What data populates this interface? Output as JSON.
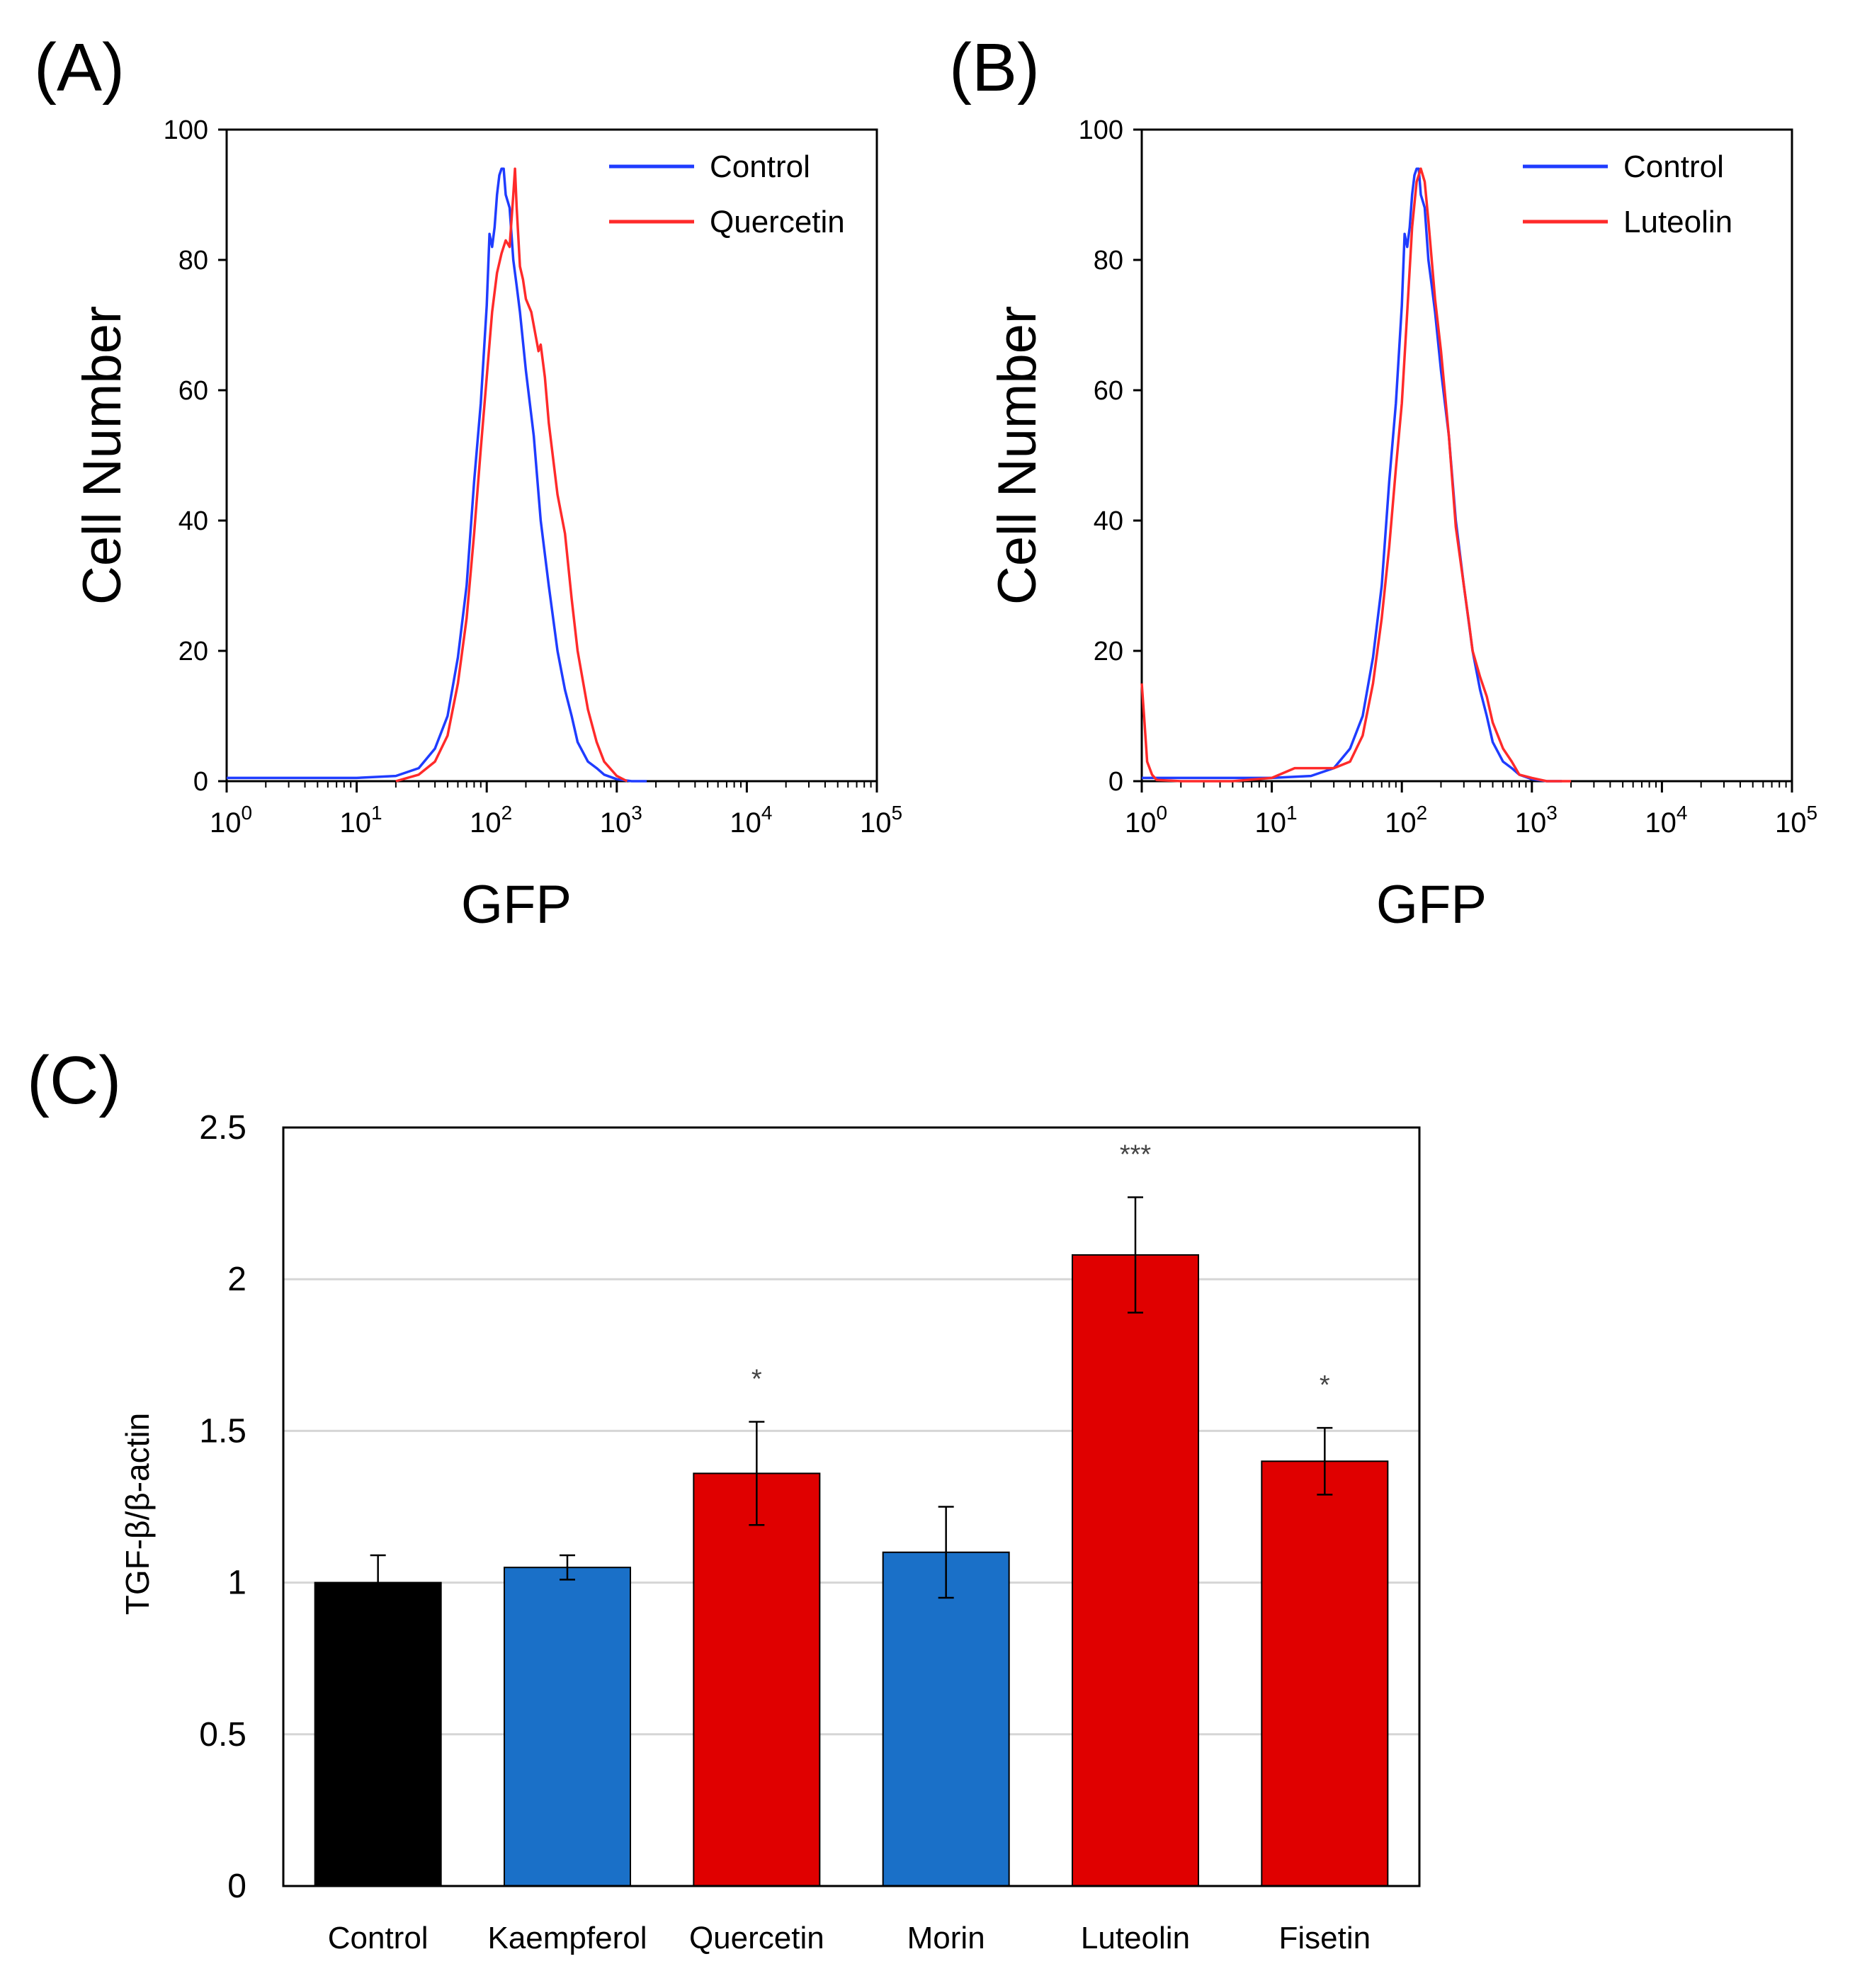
{
  "panels": {
    "a": {
      "label": "(A)"
    },
    "b": {
      "label": "(B)"
    },
    "c": {
      "label": "(C)"
    }
  },
  "colors": {
    "control": "#1f3cff",
    "treated": "#ff2a2a",
    "bar_black": "#000000",
    "bar_blue": "#1a70c8",
    "bar_red": "#e00000"
  },
  "chart_data": [
    {
      "type": "line",
      "panel": "A",
      "xscale": "log",
      "xlabel": "GFP",
      "ylabel": "Cell Number",
      "xlim": [
        1,
        100000
      ],
      "ylim": [
        0,
        100
      ],
      "yticks": [
        "0",
        "20",
        "40",
        "60",
        "80",
        "100"
      ],
      "xticks": [
        {
          "base": "10",
          "exp": "0"
        },
        {
          "base": "10",
          "exp": "1"
        },
        {
          "base": "10",
          "exp": "2"
        },
        {
          "base": "10",
          "exp": "3"
        },
        {
          "base": "10",
          "exp": "4"
        },
        {
          "base": "10",
          "exp": "5"
        }
      ],
      "legend_position": "top-right",
      "series": [
        {
          "name": "Control",
          "color": "#1f3cff",
          "x": [
            1,
            10,
            20,
            30,
            40,
            50,
            60,
            70,
            80,
            90,
            100,
            105,
            110,
            115,
            120,
            125,
            130,
            135,
            140,
            145,
            150,
            160,
            170,
            180,
            200,
            230,
            260,
            300,
            350,
            400,
            450,
            500,
            600,
            700,
            800,
            1000,
            1300,
            1700
          ],
          "y": [
            0.5,
            0.5,
            0.8,
            2,
            5,
            10,
            19,
            30,
            46,
            58,
            73,
            84,
            82,
            85,
            90,
            93,
            94,
            94,
            90,
            89,
            88,
            80,
            76,
            72,
            63,
            53,
            40,
            30,
            20,
            14,
            10,
            6,
            3,
            2,
            1,
            0.3,
            0,
            0
          ]
        },
        {
          "name": "Quercetin",
          "color": "#ff2a2a",
          "x": [
            20,
            30,
            40,
            50,
            60,
            70,
            80,
            90,
            100,
            110,
            120,
            130,
            140,
            150,
            160,
            165,
            170,
            180,
            190,
            200,
            220,
            250,
            260,
            280,
            300,
            350,
            400,
            450,
            500,
            600,
            700,
            800,
            1000,
            1200
          ],
          "y": [
            0,
            1,
            3,
            7,
            15,
            25,
            38,
            51,
            62,
            72,
            78,
            81,
            83,
            82,
            90,
            94,
            88,
            79,
            77,
            74,
            72,
            66,
            67,
            62,
            55,
            44,
            38,
            28,
            20,
            11,
            6,
            3,
            0.8,
            0
          ]
        }
      ]
    },
    {
      "type": "line",
      "panel": "B",
      "xscale": "log",
      "xlabel": "GFP",
      "ylabel": "Cell Number",
      "xlim": [
        1,
        100000
      ],
      "ylim": [
        0,
        100
      ],
      "yticks": [
        "0",
        "20",
        "40",
        "60",
        "80",
        "100"
      ],
      "xticks": [
        {
          "base": "10",
          "exp": "0"
        },
        {
          "base": "10",
          "exp": "1"
        },
        {
          "base": "10",
          "exp": "2"
        },
        {
          "base": "10",
          "exp": "3"
        },
        {
          "base": "10",
          "exp": "4"
        },
        {
          "base": "10",
          "exp": "5"
        }
      ],
      "legend_position": "top-right",
      "series": [
        {
          "name": "Control",
          "color": "#1f3cff",
          "x": [
            1,
            10,
            20,
            30,
            40,
            50,
            60,
            70,
            80,
            90,
            100,
            105,
            110,
            115,
            120,
            125,
            130,
            135,
            140,
            145,
            150,
            160,
            170,
            180,
            200,
            230,
            260,
            300,
            350,
            400,
            450,
            500,
            600,
            700,
            800,
            1000,
            1300,
            1700
          ],
          "y": [
            0.5,
            0.5,
            0.8,
            2,
            5,
            10,
            19,
            30,
            46,
            58,
            73,
            84,
            82,
            85,
            90,
            93,
            94,
            94,
            90,
            89,
            88,
            80,
            76,
            72,
            63,
            53,
            40,
            30,
            20,
            14,
            10,
            6,
            3,
            2,
            1,
            0.3,
            0,
            0
          ]
        },
        {
          "name": "Luteolin",
          "color": "#ff2a2a",
          "x": [
            1,
            1.05,
            1.1,
            1.2,
            1.3,
            2,
            5,
            10,
            15,
            20,
            30,
            40,
            50,
            60,
            70,
            80,
            90,
            100,
            110,
            120,
            130,
            140,
            150,
            160,
            180,
            200,
            230,
            260,
            300,
            330,
            350,
            400,
            450,
            500,
            600,
            700,
            800,
            1000,
            1300,
            2000
          ],
          "y": [
            15,
            9,
            3,
            1,
            0.2,
            0,
            0,
            0.5,
            2,
            2,
            2,
            3,
            7,
            15,
            25,
            36,
            48,
            58,
            72,
            85,
            92,
            94,
            92,
            86,
            74,
            66,
            53,
            39,
            30,
            24,
            20,
            16,
            13,
            9,
            5,
            3,
            1,
            0.5,
            0,
            0
          ]
        }
      ]
    },
    {
      "type": "bar",
      "panel": "C",
      "title": "",
      "xlabel": "",
      "ylabel": "TGF-β/β-actin",
      "ylim": [
        0,
        2.5
      ],
      "yticks": [
        "0",
        "0.5",
        "1",
        "1.5",
        "2",
        "2.5"
      ],
      "grid": true,
      "categories": [
        "Control",
        "Kaempferol",
        "Quercetin",
        "Morin",
        "Luteolin",
        "Fisetin"
      ],
      "values": [
        1.0,
        1.05,
        1.36,
        1.1,
        2.08,
        1.4
      ],
      "errors": [
        0.09,
        0.04,
        0.17,
        0.15,
        0.19,
        0.11
      ],
      "colors": [
        "#000000",
        "#1a70c8",
        "#e00000",
        "#1a70c8",
        "#e00000",
        "#e00000"
      ],
      "significance": [
        "",
        "",
        "*",
        "",
        "***",
        "*"
      ]
    }
  ]
}
